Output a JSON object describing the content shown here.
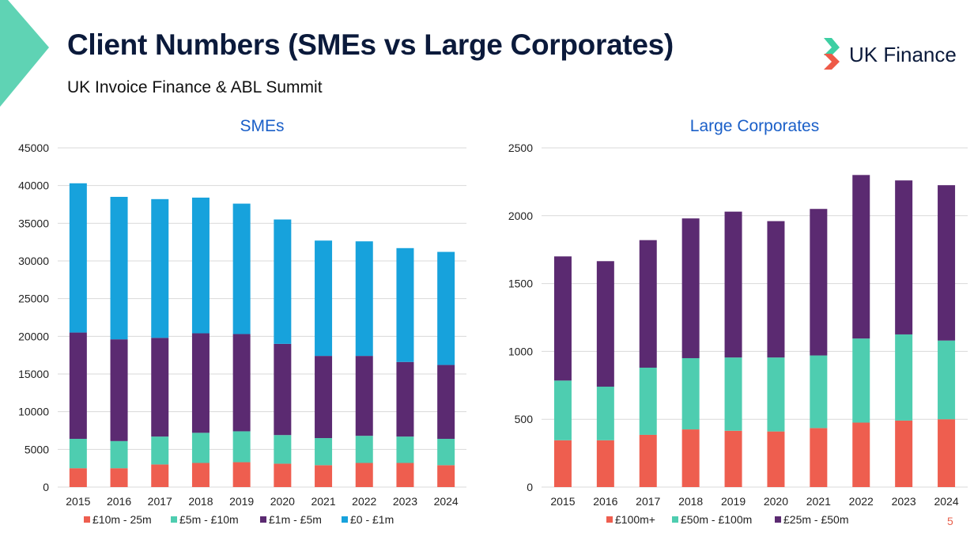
{
  "header": {
    "title": "Client Numbers (SMEs vs Large Corporates)",
    "subtitle": "UK Invoice Finance & ABL Summit",
    "logo_text": "UK Finance",
    "page_number": "5"
  },
  "colors": {
    "corner_accent": "#5fd3b4",
    "title": "#0b1a3b",
    "chart_title": "#1a5fc8",
    "logo_green": "#3ecfa3",
    "logo_red": "#ee5a48"
  },
  "chart_data": [
    {
      "type": "bar",
      "stacked": true,
      "title": "SMEs",
      "categories": [
        "2015",
        "2016",
        "2017",
        "2018",
        "2019",
        "2020",
        "2021",
        "2022",
        "2023",
        "2024"
      ],
      "ylim": [
        0,
        45000
      ],
      "yticks": [
        0,
        5000,
        10000,
        15000,
        20000,
        25000,
        30000,
        35000,
        40000,
        45000
      ],
      "grid": true,
      "legend_position": "bottom",
      "series": [
        {
          "name": "£10m - 25m",
          "color": "#ee5e4f",
          "values": [
            2500,
            2500,
            3000,
            3200,
            3300,
            3100,
            2900,
            3200,
            3200,
            2900
          ]
        },
        {
          "name": "£5m - £10m",
          "color": "#4ecdb0",
          "values": [
            3900,
            3600,
            3700,
            4000,
            4100,
            3800,
            3600,
            3600,
            3500,
            3500
          ]
        },
        {
          "name": "£1m - £5m",
          "color": "#5b2a71",
          "values": [
            14100,
            13500,
            13100,
            13200,
            12900,
            12100,
            10900,
            10600,
            9900,
            9800
          ]
        },
        {
          "name": "£0 - £1m",
          "color": "#17a2dc",
          "values": [
            19800,
            18900,
            18400,
            18000,
            17300,
            16500,
            15300,
            15200,
            15100,
            15000
          ]
        }
      ]
    },
    {
      "type": "bar",
      "stacked": true,
      "title": "Large Corporates",
      "categories": [
        "2015",
        "2016",
        "2017",
        "2018",
        "2019",
        "2020",
        "2021",
        "2022",
        "2023",
        "2024"
      ],
      "ylim": [
        0,
        2500
      ],
      "yticks": [
        0,
        500,
        1000,
        1500,
        2000,
        2500
      ],
      "grid": true,
      "legend_position": "bottom",
      "series": [
        {
          "name": "£100m+",
          "color": "#ee5e4f",
          "values": [
            345,
            345,
            385,
            425,
            415,
            410,
            435,
            475,
            490,
            500
          ]
        },
        {
          "name": "£50m - £100m",
          "color": "#4ecdb0",
          "values": [
            440,
            395,
            495,
            525,
            540,
            545,
            535,
            620,
            635,
            580
          ]
        },
        {
          "name": "£25m - £50m",
          "color": "#5b2a71",
          "values": [
            915,
            925,
            940,
            1030,
            1075,
            1005,
            1080,
            1205,
            1135,
            1145
          ]
        }
      ]
    }
  ]
}
